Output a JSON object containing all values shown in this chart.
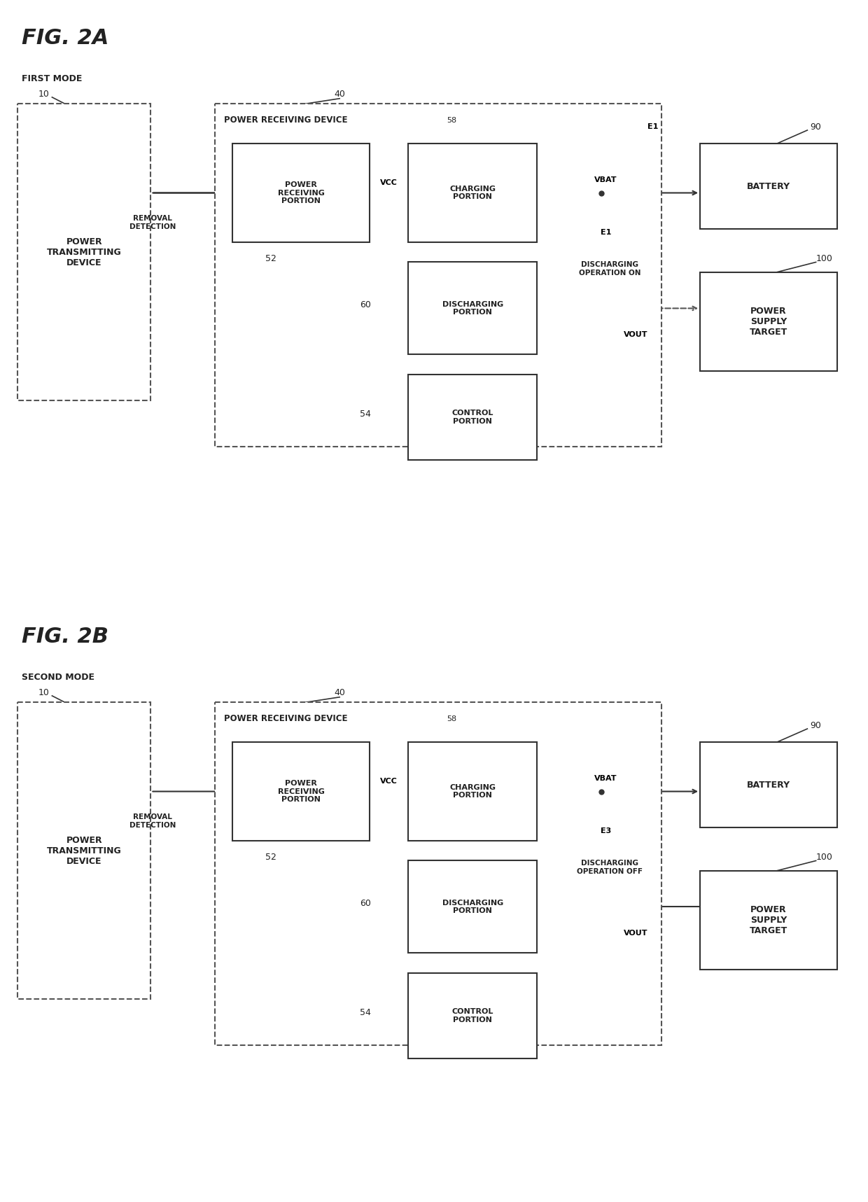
{
  "bg_color": "#ffffff",
  "fig_width": 12.4,
  "fig_height": 17.17,
  "fig2a_title": "FIG. 2A",
  "fig2b_title": "FIG. 2B",
  "fig2a_mode": "FIRST MODE",
  "fig2b_mode": "SECOND MODE",
  "label_color": "#222222",
  "box_edge_color": "#333333",
  "dashed_edge_color": "#555555"
}
